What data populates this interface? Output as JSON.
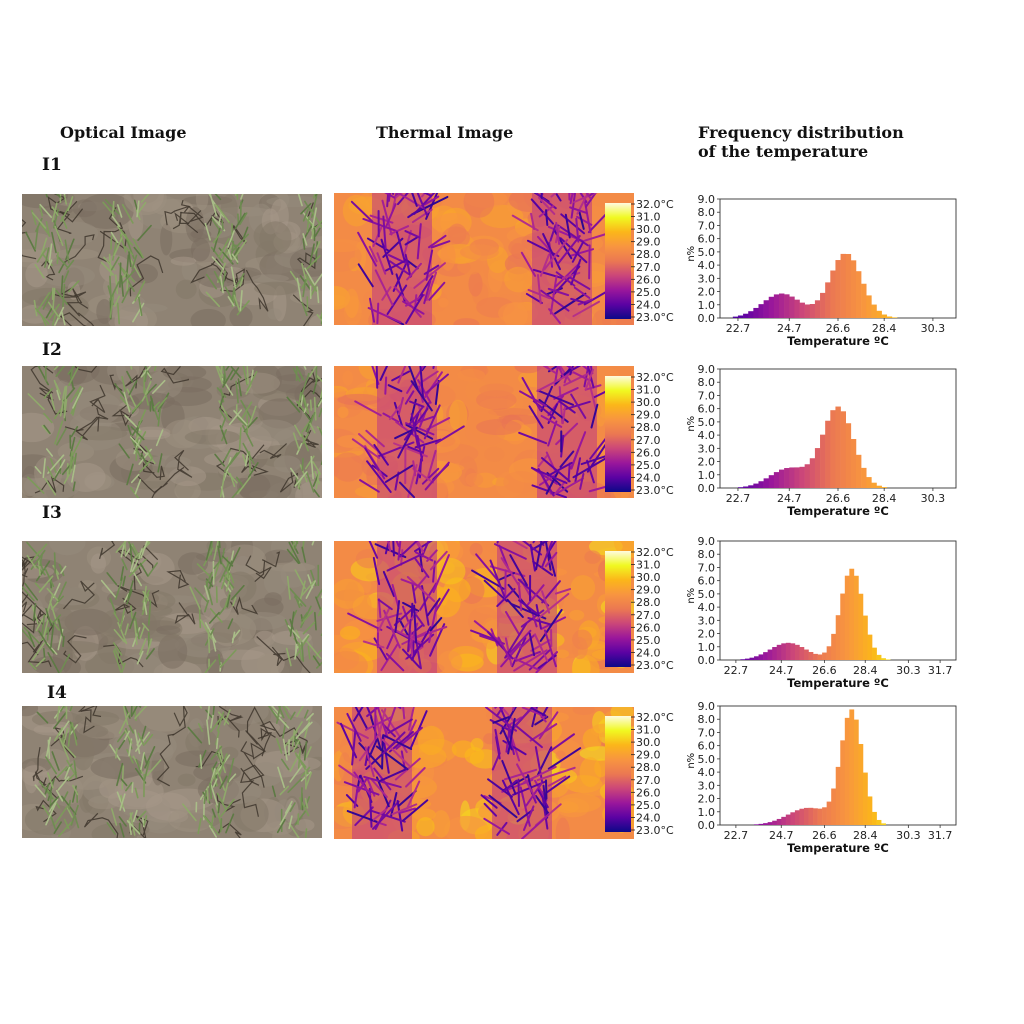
{
  "headers": {
    "optical": "Optical Image",
    "thermal": "Thermal Image",
    "frequency_line1": "Frequency distribution",
    "frequency_line2": "of the temperature"
  },
  "rows": [
    {
      "label": "I1"
    },
    {
      "label": "I2"
    },
    {
      "label": "I3"
    },
    {
      "label": "I4"
    }
  ],
  "colorbar": {
    "top_tick": "32.0°C",
    "ticks": [
      "31.0",
      "30.0",
      "29.0",
      "28.0",
      "27.0",
      "26.0",
      "25.0",
      "24.0",
      "23.0°C"
    ],
    "colors": [
      "#0d0887",
      "#5b02a3",
      "#9a179b",
      "#cb4679",
      "#eb7852",
      "#f89540",
      "#fbb61a",
      "#f0f921",
      "#fffbe0"
    ]
  },
  "chart_data": [
    {
      "type": "bar",
      "panel": "I1",
      "xlabel": "Temperature ºC",
      "ylabel": "n%",
      "xlim": [
        22.0,
        31.2
      ],
      "ylim": [
        0,
        9.0
      ],
      "xticks": [
        "22.7",
        "24.7",
        "26.6",
        "28.4",
        "30.3"
      ],
      "yticks": [
        "0.0",
        "1.0",
        "2.0",
        "3.0",
        "4.0",
        "5.0",
        "6.0",
        "7.0",
        "8.0",
        "9.0"
      ],
      "peaks": [
        {
          "mu": 24.3,
          "sigma": 0.75,
          "amp": 1.85
        },
        {
          "mu": 26.8,
          "sigma": 0.62,
          "amp": 4.9
        }
      ]
    },
    {
      "type": "bar",
      "panel": "I2",
      "xlabel": "Temperature ºC",
      "ylabel": "n%",
      "xlim": [
        22.0,
        31.2
      ],
      "ylim": [
        0,
        9.0
      ],
      "xticks": [
        "22.7",
        "24.7",
        "26.6",
        "28.4",
        "30.3"
      ],
      "yticks": [
        "0.0",
        "1.0",
        "2.0",
        "3.0",
        "4.0",
        "5.0",
        "6.0",
        "7.0",
        "8.0",
        "9.0"
      ],
      "peaks": [
        {
          "mu": 24.6,
          "sigma": 0.75,
          "amp": 1.5
        },
        {
          "mu": 26.5,
          "sigma": 0.6,
          "amp": 6.1
        }
      ]
    },
    {
      "type": "bar",
      "panel": "I3",
      "xlabel": "Temperature ºC",
      "ylabel": "n%",
      "xlim": [
        22.0,
        32.4
      ],
      "ylim": [
        0,
        9.0
      ],
      "xticks": [
        "22.7",
        "24.7",
        "26.6",
        "28.4",
        "30.3",
        "31.7"
      ],
      "yticks": [
        "0.0",
        "1.0",
        "2.0",
        "3.0",
        "4.0",
        "5.0",
        "6.0",
        "7.0",
        "8.0",
        "9.0"
      ],
      "peaks": [
        {
          "mu": 24.9,
          "sigma": 0.8,
          "amp": 1.3
        },
        {
          "mu": 27.7,
          "sigma": 0.5,
          "amp": 6.9
        }
      ]
    },
    {
      "type": "bar",
      "panel": "I4",
      "xlabel": "Temperature ºC",
      "ylabel": "n%",
      "xlim": [
        22.0,
        32.4
      ],
      "ylim": [
        0,
        9.0
      ],
      "xticks": [
        "22.7",
        "24.7",
        "26.6",
        "28.4",
        "30.3",
        "31.7"
      ],
      "yticks": [
        "0.0",
        "1.0",
        "2.0",
        "3.0",
        "4.0",
        "5.0",
        "6.0",
        "7.0",
        "8.0",
        "9.0"
      ],
      "peaks": [
        {
          "mu": 25.8,
          "sigma": 0.9,
          "amp": 1.3
        },
        {
          "mu": 27.7,
          "sigma": 0.48,
          "amp": 8.6
        }
      ]
    }
  ]
}
